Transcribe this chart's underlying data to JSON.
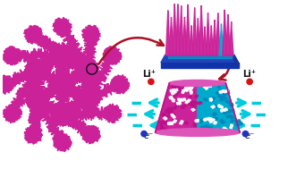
{
  "bg_color": "#ffffff",
  "magenta": "#cc2299",
  "magenta_mid": "#bb1188",
  "magenta_light": "#dd55bb",
  "cyan_body": "#00aacc",
  "cyan_arrow": "#00ccdd",
  "blue_substrate": "#2244bb",
  "blue_substrate_dark": "#1133aa",
  "dark_red": "#aa1122",
  "li_color": "#dd1111",
  "electron_color": "#2233bb",
  "li_label": "Li⁺",
  "e_label": "e⁻",
  "figsize": [
    3.22,
    1.89
  ],
  "dpi": 100
}
